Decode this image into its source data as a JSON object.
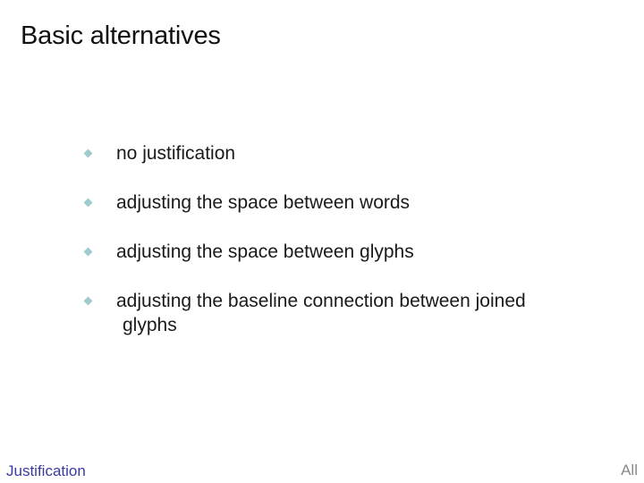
{
  "slide": {
    "title": "Basic alternatives",
    "bullets": [
      {
        "text": "no justification"
      },
      {
        "text": "adjusting the space between words"
      },
      {
        "text": "adjusting the space between glyphs"
      },
      {
        "text": "adjusting the baseline connection between joined",
        "continuation": "glyphs"
      }
    ]
  },
  "footer": {
    "section": "Justification",
    "nav": "All"
  },
  "colors": {
    "bullet": "#9ecad0",
    "section_link": "#3a3aa0"
  },
  "icons": {
    "bullet": "diamond-bullet-icon"
  }
}
